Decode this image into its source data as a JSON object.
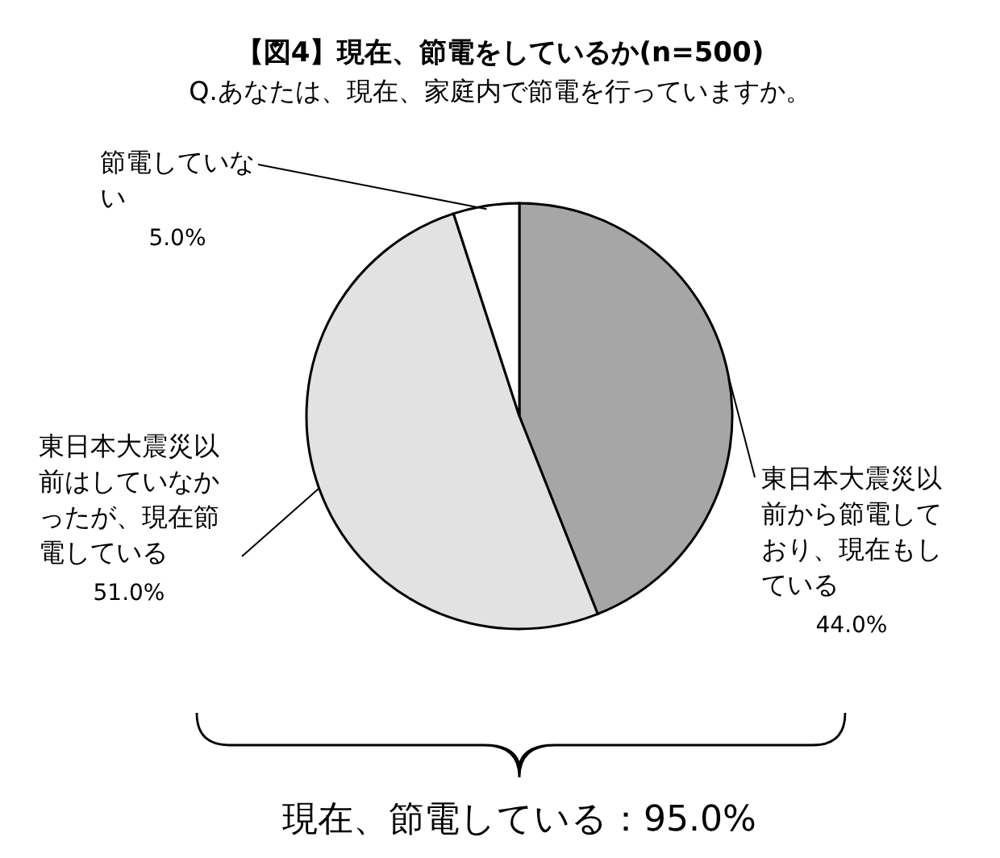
{
  "chart_data": {
    "type": "pie",
    "title": "【図4】現在、節電をしているか(n=500)",
    "subtitle": "Q.あなたは、現在、家庭内で節電を行っていますか。",
    "categories": [
      "東日本大震災以前から節電しており、現在もしている",
      "東日本大震災以前はしていなかったが、現在節電している",
      "節電していない"
    ],
    "values": [
      44.0,
      51.0,
      5.0
    ],
    "value_labels": [
      "44.0%",
      "51.0%",
      "5.0%"
    ],
    "colors": [
      "#a6a6a6",
      "#e2e2e2",
      "#ffffff"
    ],
    "annotations": [
      "現在、節電している：95.0%"
    ]
  }
}
